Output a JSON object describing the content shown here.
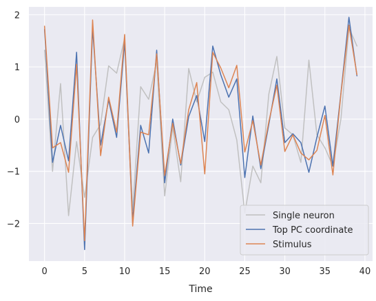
{
  "chart_data": {
    "type": "line",
    "xlabel": "Time",
    "ylabel": "",
    "xlim": [
      -1.95,
      40.95
    ],
    "ylim": [
      -2.72,
      2.15
    ],
    "xticks": [
      0,
      5,
      10,
      15,
      20,
      25,
      30,
      35,
      40
    ],
    "yticks": [
      -2,
      -1,
      0,
      1,
      2
    ],
    "xtick_labels": [
      "0",
      "5",
      "10",
      "15",
      "20",
      "25",
      "30",
      "35",
      "40"
    ],
    "ytick_labels": [
      "−2",
      "−1",
      "0",
      "1",
      "2"
    ],
    "grid": true,
    "legend_position": "lower-right",
    "x": [
      0,
      1,
      2,
      3,
      4,
      5,
      6,
      7,
      8,
      9,
      10,
      11,
      12,
      13,
      14,
      15,
      16,
      17,
      18,
      19,
      20,
      21,
      22,
      23,
      24,
      25,
      26,
      27,
      28,
      29,
      30,
      31,
      32,
      33,
      34,
      35,
      36,
      37,
      38,
      39
    ],
    "series": [
      {
        "name": "Single neuron",
        "color": "#c0c0c0",
        "values": [
          1.32,
          -1.0,
          0.68,
          -1.85,
          -0.43,
          -1.5,
          -0.35,
          -0.1,
          1.02,
          0.88,
          1.55,
          -1.75,
          0.62,
          0.38,
          1.1,
          -1.47,
          -0.15,
          -1.2,
          0.97,
          0.33,
          0.8,
          0.9,
          0.33,
          0.18,
          -0.4,
          -1.8,
          -0.9,
          -1.22,
          0.48,
          1.2,
          -0.17,
          -0.3,
          -0.83,
          1.13,
          -0.3,
          -0.55,
          -0.9,
          0.0,
          1.75,
          1.4
        ]
      },
      {
        "name": "Top PC coordinate",
        "color": "#4c72b0",
        "values": [
          1.72,
          -0.83,
          -0.12,
          -0.8,
          1.28,
          -2.5,
          1.75,
          -0.5,
          0.37,
          -0.35,
          1.48,
          -1.95,
          -0.12,
          -0.65,
          1.32,
          -1.22,
          0.0,
          -0.88,
          0.05,
          0.45,
          -0.43,
          1.4,
          0.85,
          0.42,
          0.77,
          -1.12,
          0.06,
          -0.95,
          -0.1,
          0.77,
          -0.45,
          -0.28,
          -0.45,
          -1.02,
          -0.35,
          0.25,
          -0.9,
          0.5,
          1.95,
          0.83
        ]
      },
      {
        "name": "Stimulus",
        "color": "#dd8452",
        "values": [
          1.78,
          -0.55,
          -0.45,
          -1.02,
          1.05,
          -2.33,
          1.9,
          -0.7,
          0.42,
          -0.25,
          1.62,
          -2.05,
          -0.25,
          -0.3,
          1.25,
          -1.08,
          -0.08,
          -0.85,
          0.18,
          0.7,
          -1.05,
          1.28,
          0.98,
          0.6,
          1.03,
          -0.63,
          -0.03,
          -0.88,
          -0.05,
          0.65,
          -0.62,
          -0.3,
          -0.65,
          -0.78,
          -0.6,
          0.07,
          -1.07,
          0.48,
          1.8,
          0.85
        ]
      }
    ]
  }
}
